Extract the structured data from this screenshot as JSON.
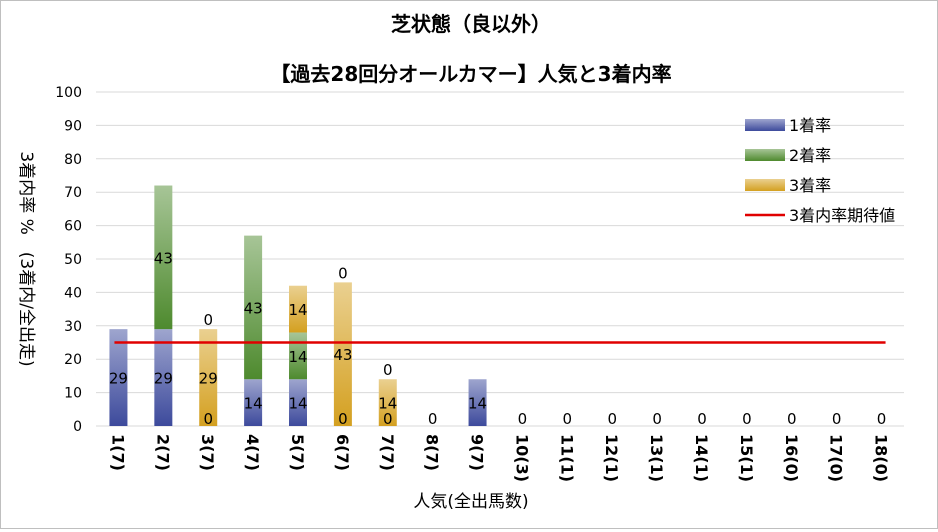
{
  "chart_data": {
    "type": "bar",
    "stacked": true,
    "title": "芝状態（良以外）",
    "subtitle": "【過去28回分オールカマー】人気と3着内率",
    "xlabel": "人気(全出馬数)",
    "ylabel": "3着内率 %　(3着内/全出走)",
    "ylim": [
      0,
      100
    ],
    "yticks": [
      "0",
      "10",
      "20",
      "30",
      "40",
      "50",
      "60",
      "70",
      "80",
      "90",
      "100"
    ],
    "grid": true,
    "legend_position": "top-right",
    "categories": [
      "1(7)",
      "2(7)",
      "3(7)",
      "4(7)",
      "5(7)",
      "6(7)",
      "7(7)",
      "8(7)",
      "9(7)",
      "10(3)",
      "11(1)",
      "12(1)",
      "13(1)",
      "14(1)",
      "15(1)",
      "16(0)",
      "17(0)",
      "18(0)"
    ],
    "series": [
      {
        "name": "1着率",
        "color": "#3d4a9c",
        "values": [
          29,
          29,
          0,
          14,
          14,
          0,
          0,
          0,
          14,
          0,
          0,
          0,
          0,
          0,
          0,
          0,
          0,
          0
        ]
      },
      {
        "name": "2着率",
        "color": "#4e8a2e",
        "values": [
          0,
          43,
          0,
          43,
          14,
          0,
          0,
          0,
          0,
          0,
          0,
          0,
          0,
          0,
          0,
          0,
          0,
          0
        ]
      },
      {
        "name": "3着率",
        "color": "#d4a020",
        "values": [
          0,
          0,
          29,
          0,
          14,
          43,
          14,
          0,
          0,
          0,
          0,
          0,
          0,
          0,
          0,
          0,
          0,
          0
        ]
      }
    ],
    "reference_line": {
      "name": "3着内率期待値",
      "color": "#e00000",
      "value": 25
    }
  }
}
